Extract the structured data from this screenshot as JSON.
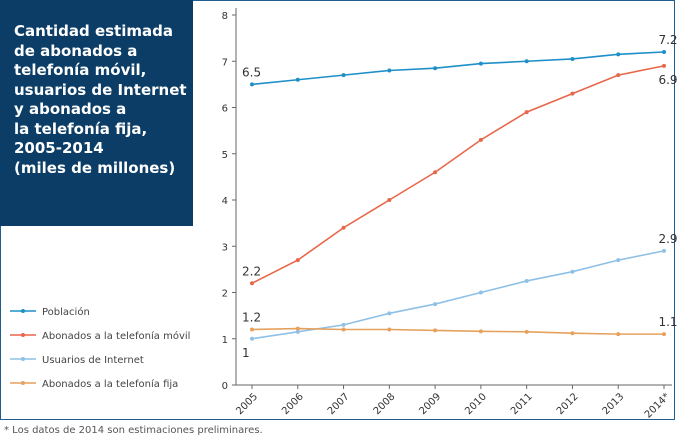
{
  "title": "Cantidad estimada\nde abonados a\ntelefonía móvil,\nusuarios de Internet\ny abonados a\nla telefonía fija,\n2005-2014\n(miles de millones)",
  "footnote": "* Los datos de 2014 son estimaciones preliminares.",
  "chart_data": {
    "type": "line",
    "title": "Cantidad estimada de abonados a telefonía móvil, usuarios de Internet y abonados a la telefonía fija, 2005-2014 (miles de millones)",
    "categories": [
      "2005",
      "2006",
      "2007",
      "2008",
      "2009",
      "2010",
      "2011",
      "2012",
      "2013",
      "2014*"
    ],
    "ylim": [
      0,
      8
    ],
    "yticks": [
      0,
      1,
      2,
      3,
      4,
      5,
      6,
      7,
      8
    ],
    "grid": false,
    "legend_position": "bottom-left",
    "series": [
      {
        "name": "Población",
        "color": "#1e8fc8",
        "values": [
          6.5,
          6.6,
          6.7,
          6.8,
          6.85,
          6.95,
          7.0,
          7.05,
          7.15,
          7.2
        ]
      },
      {
        "name": "Abonados a la telefonía móvil",
        "color": "#e8674a",
        "values": [
          2.2,
          2.7,
          3.4,
          4.0,
          4.6,
          5.3,
          5.9,
          6.3,
          6.7,
          6.9
        ]
      },
      {
        "name": "Usuarios de Internet",
        "color": "#8fc0e6",
        "values": [
          1.0,
          1.15,
          1.3,
          1.55,
          1.75,
          2.0,
          2.25,
          2.45,
          2.7,
          2.9
        ]
      },
      {
        "name": "Abonados a la telefonía fija",
        "color": "#e6a15e",
        "values": [
          1.2,
          1.22,
          1.2,
          1.2,
          1.18,
          1.16,
          1.15,
          1.12,
          1.1,
          1.1
        ]
      }
    ],
    "data_labels": [
      {
        "series": 0,
        "index": 0,
        "text": "6.5",
        "pos": "above"
      },
      {
        "series": 0,
        "index": 9,
        "text": "7.2",
        "pos": "above"
      },
      {
        "series": 1,
        "index": 0,
        "text": "2.2",
        "pos": "above"
      },
      {
        "series": 1,
        "index": 9,
        "text": "6.9",
        "pos": "below"
      },
      {
        "series": 2,
        "index": 0,
        "text": "1",
        "pos": "below"
      },
      {
        "series": 2,
        "index": 9,
        "text": "2.9",
        "pos": "above"
      },
      {
        "series": 3,
        "index": 0,
        "text": "1.2",
        "pos": "above"
      },
      {
        "series": 3,
        "index": 9,
        "text": "1.1",
        "pos": "above"
      }
    ]
  }
}
